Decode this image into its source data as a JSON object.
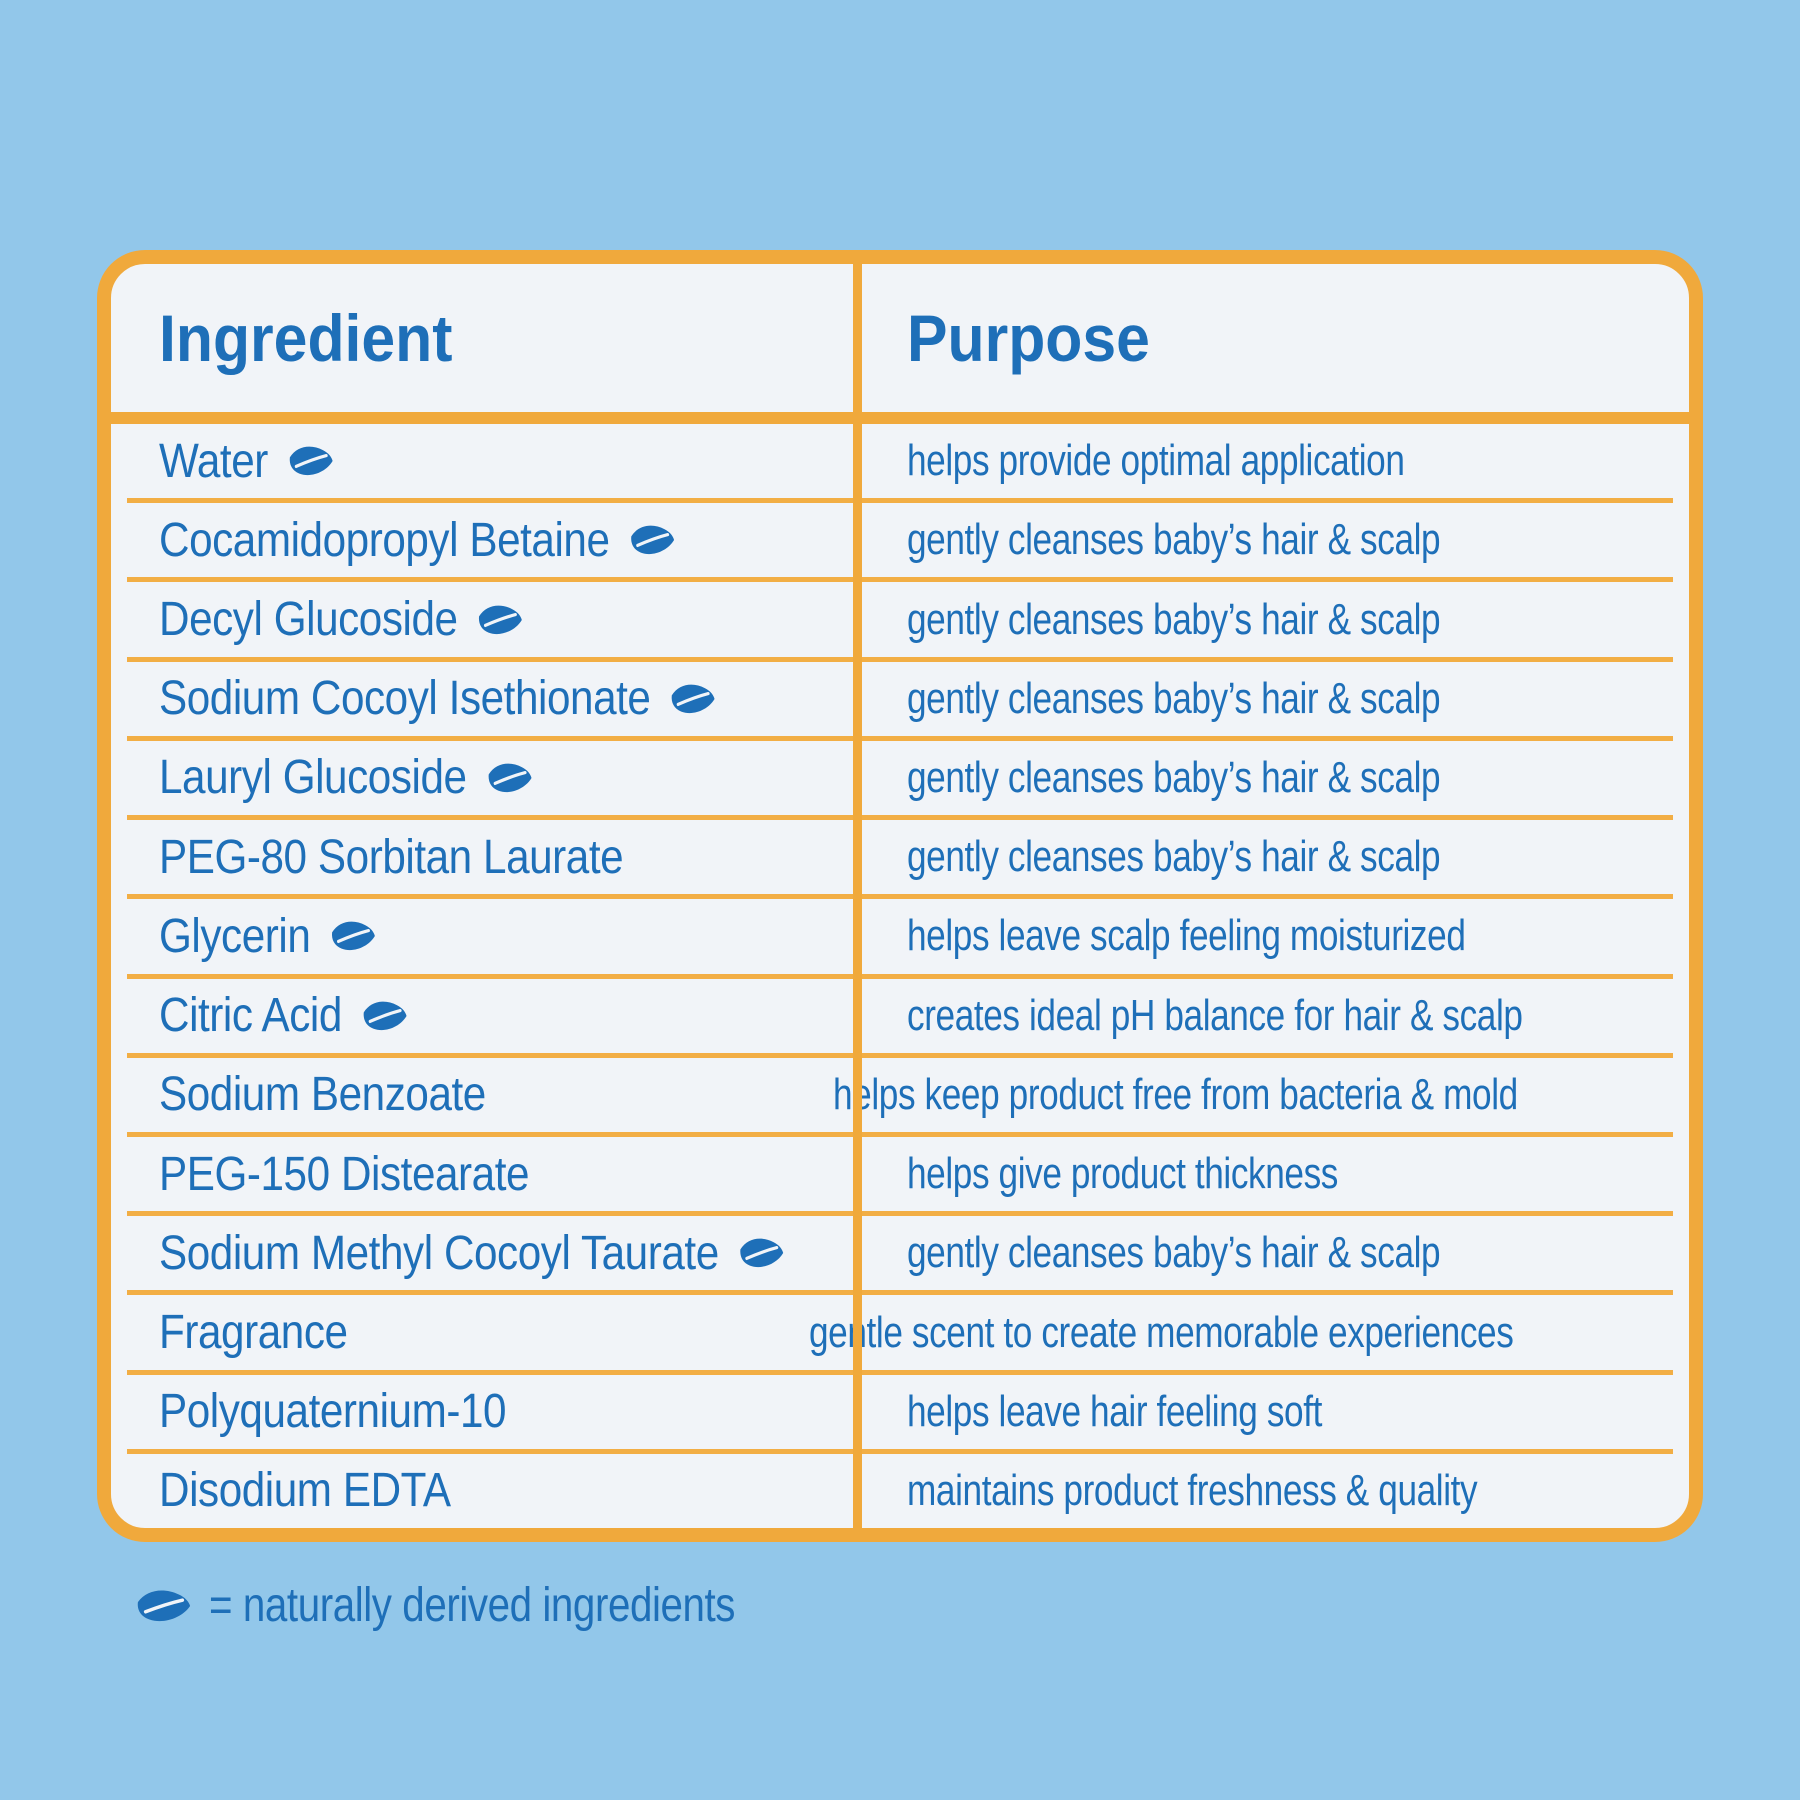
{
  "page": {
    "background_color": "#92c7ea",
    "accent_orange": "#F0A93C",
    "text_blue": "#1E6FB8",
    "table_background": "#F1F4F8"
  },
  "table": {
    "header": {
      "ingredient": "Ingredient",
      "purpose": "Purpose"
    },
    "rows": [
      {
        "ingredient": "Water",
        "leaf": true,
        "purpose": "helps provide optimal application"
      },
      {
        "ingredient": "Cocamidopropyl Betaine",
        "leaf": true,
        "purpose": "gently cleanses baby’s hair & scalp"
      },
      {
        "ingredient": "Decyl Glucoside",
        "leaf": true,
        "purpose": "gently cleanses baby’s hair & scalp"
      },
      {
        "ingredient": "Sodium Cocoyl Isethionate",
        "leaf": true,
        "purpose": "gently cleanses baby’s hair & scalp"
      },
      {
        "ingredient": "Lauryl Glucoside",
        "leaf": true,
        "purpose": "gently cleanses baby’s hair & scalp"
      },
      {
        "ingredient": "PEG-80 Sorbitan Laurate",
        "leaf": false,
        "purpose": "gently cleanses baby’s hair & scalp"
      },
      {
        "ingredient": "Glycerin",
        "leaf": true,
        "purpose": "helps leave scalp feeling moisturized"
      },
      {
        "ingredient": "Citric Acid",
        "leaf": true,
        "purpose": "creates ideal pH balance for hair & scalp"
      },
      {
        "ingredient": "Sodium Benzoate",
        "leaf": false,
        "purpose": "helps keep product free from bacteria & mold"
      },
      {
        "ingredient": "PEG-150 Distearate",
        "leaf": false,
        "purpose": "helps give product thickness"
      },
      {
        "ingredient": "Sodium Methyl Cocoyl Taurate",
        "leaf": true,
        "purpose": "gently cleanses baby’s hair & scalp"
      },
      {
        "ingredient": "Fragrance",
        "leaf": false,
        "purpose": "gentle scent to create memorable experiences"
      },
      {
        "ingredient": "Polyquaternium-10",
        "leaf": false,
        "purpose": "helps leave hair feeling soft"
      },
      {
        "ingredient": "Disodium EDTA",
        "leaf": false,
        "purpose": "maintains product freshness & quality"
      }
    ]
  },
  "legend": {
    "icon": "leaf-icon",
    "text": "= naturally derived ingredients"
  }
}
